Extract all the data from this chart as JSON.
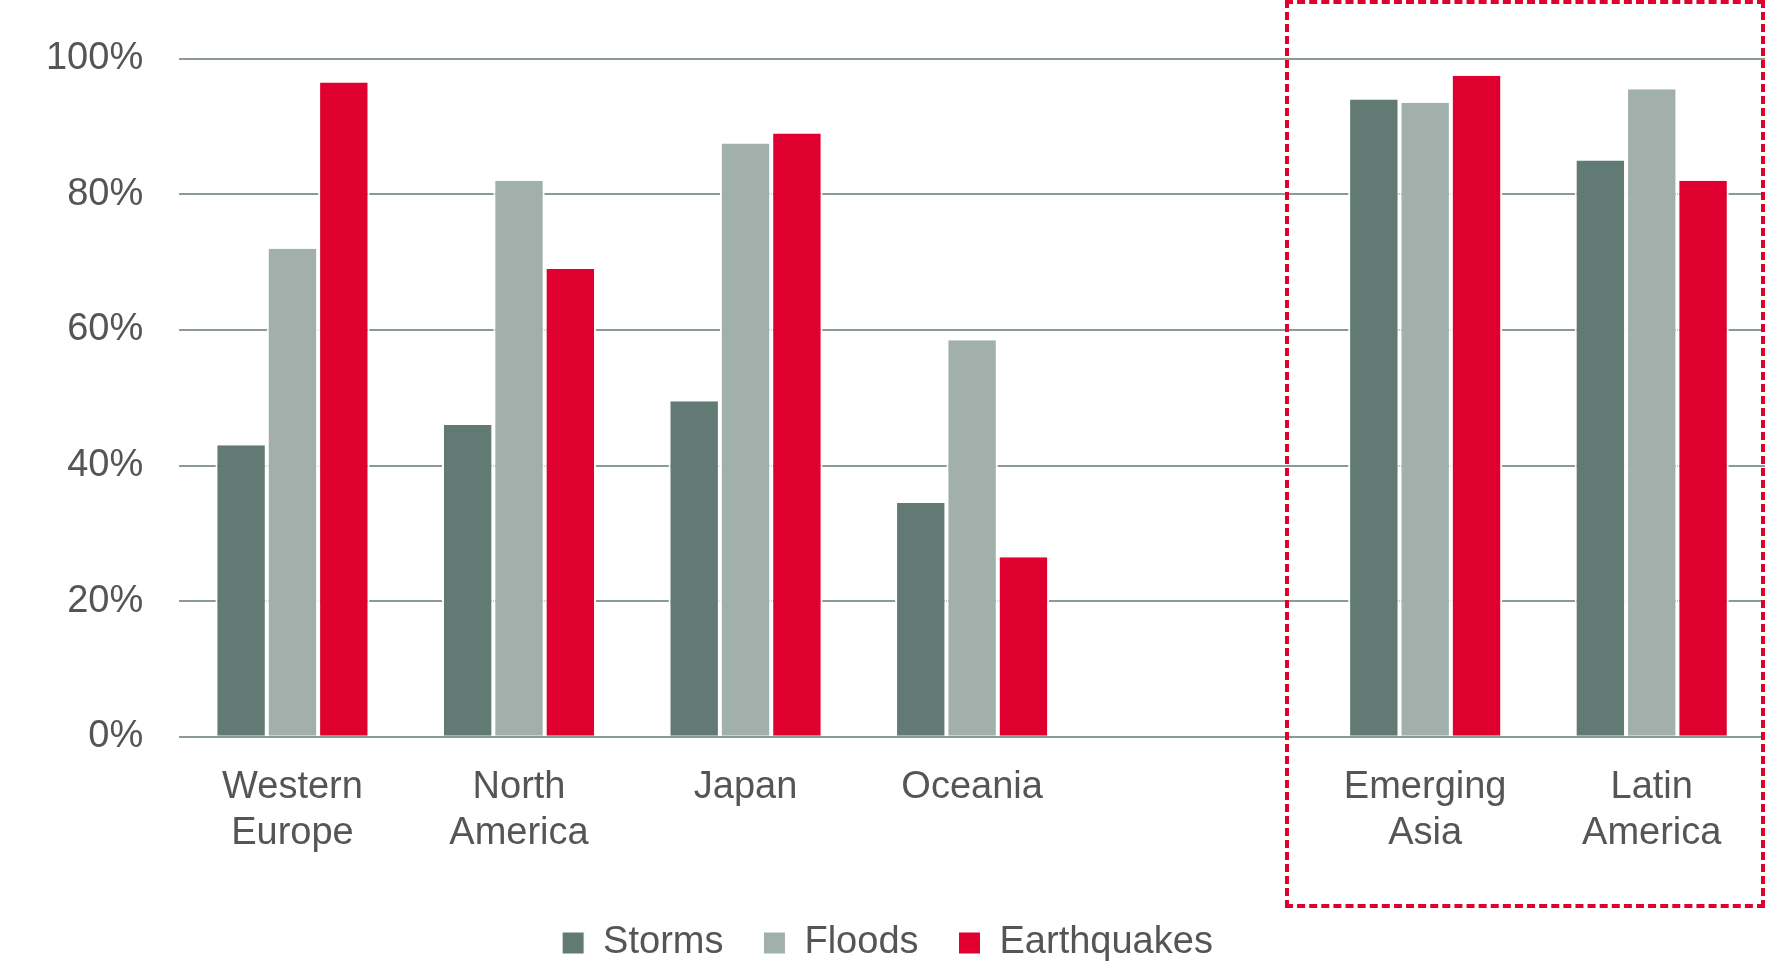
{
  "chart_data": {
    "type": "bar",
    "categories": [
      "Western Europe",
      "North America",
      "Japan",
      "Oceania",
      null,
      "Emerging Asia",
      "Latin America"
    ],
    "series": [
      {
        "name": "Storms",
        "color": "#617a74",
        "values": [
          43,
          46,
          49.5,
          34.5,
          null,
          94,
          85
        ]
      },
      {
        "name": "Floods",
        "color": "#a2b0ab",
        "values": [
          72,
          82,
          87.5,
          58.5,
          null,
          93.5,
          95.5
        ]
      },
      {
        "name": "Earthquakes",
        "color": "#e0002f",
        "values": [
          96.5,
          69,
          89,
          26.5,
          null,
          97.5,
          82
        ]
      }
    ],
    "ylim": [
      0,
      100
    ],
    "yticks": [
      {
        "value": 0,
        "label": "0%"
      },
      {
        "value": 20,
        "label": "20%"
      },
      {
        "value": 40,
        "label": "40%"
      },
      {
        "value": 60,
        "label": "60%"
      },
      {
        "value": 80,
        "label": "80%"
      },
      {
        "value": 100,
        "label": "100%"
      }
    ],
    "grid": "y",
    "legend": "bottom"
  }
}
